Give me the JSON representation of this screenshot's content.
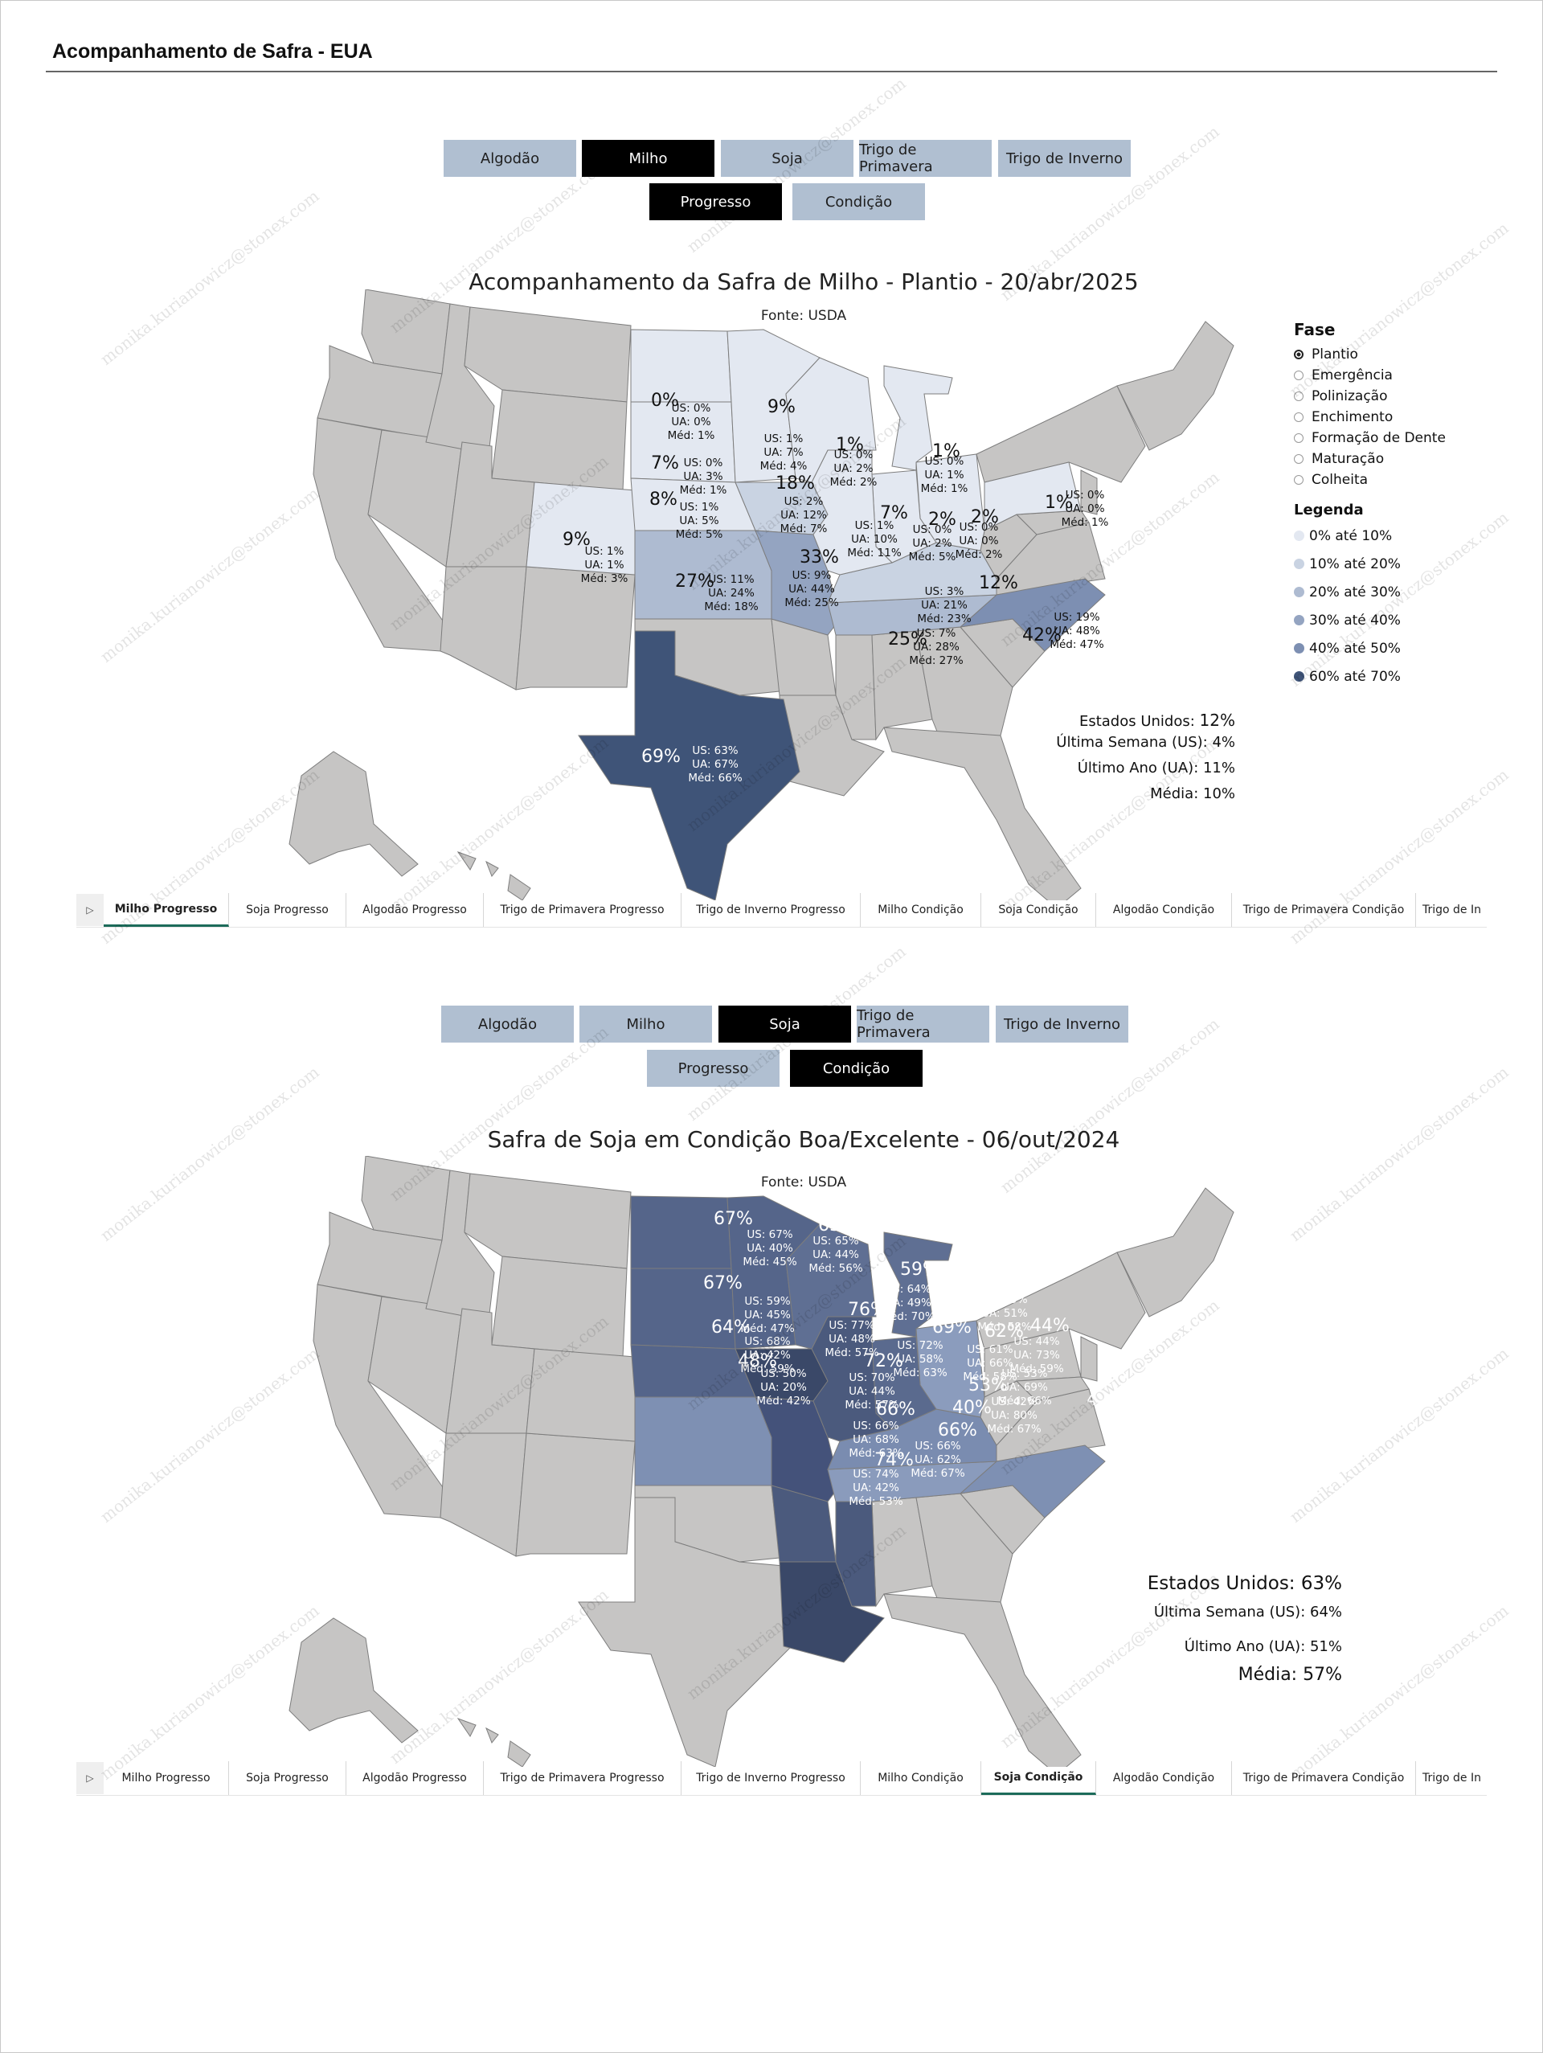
{
  "page_title": "Acompanhamento de Safra - EUA",
  "watermark": "monika.kurianowicz@stonex.com",
  "colors": {
    "button_off": "#b0bfd1",
    "button_on": "#000000",
    "state_inactive": "#c6c5c4",
    "tab_active_underline": "#1c6b5a",
    "legend_0_10": "#e3e8f1",
    "legend_10_20": "#c9d3e2",
    "legend_20_30": "#aebbd1",
    "legend_30_40": "#94a4c1",
    "legend_40_50": "#7d8fb2",
    "legend_60_70": "#3f5478"
  },
  "tabs": [
    "Milho Progresso",
    "Soja Progresso",
    "Algodão Progresso",
    "Trigo de Primavera Progresso",
    "Trigo de Inverno Progresso",
    "Milho Condição",
    "Soja Condição",
    "Algodão Condição",
    "Trigo de Primavera Condição",
    "Trigo de In"
  ],
  "tab_nav_icon": "play-right-icon",
  "panel1": {
    "crops": [
      "Algodão",
      "Milho",
      "Soja",
      "Trigo de Primavera",
      "Trigo de Inverno"
    ],
    "selected_crop": "Milho",
    "modes": [
      "Progresso",
      "Condição"
    ],
    "selected_mode": "Progresso",
    "title": "Acompanhamento da Safra de Milho - Plantio - 20/abr/2025",
    "source": "Fonte: USDA",
    "legend": {
      "phase_title": "Fase",
      "phases": [
        "Plantio",
        "Emergência",
        "Polinização",
        "Enchimento",
        "Formação de Dente",
        "Maturação",
        "Colheita"
      ],
      "selected_phase": "Plantio",
      "legend_title": "Legenda",
      "bins": [
        "0% até 10%",
        "10% até 20%",
        "20% até 30%",
        "30% até 40%",
        "40% até 50%",
        "60% até 70%"
      ]
    },
    "summary": {
      "us_label": "Estados Unidos:",
      "us_value": "12%",
      "last_week": "Última Semana (US): 4%",
      "last_year": "Último Ano (UA): 11%",
      "average": "Média: 10%"
    },
    "states": [
      {
        "code": "ND",
        "value": "0%",
        "us": "US: 0%",
        "ua": "UA: 0%",
        "med": "Méd: 1%"
      },
      {
        "code": "MN",
        "value": "9%",
        "us": "US: 1%",
        "ua": "UA: 7%",
        "med": "Méd: 4%"
      },
      {
        "code": "WI",
        "value": "1%",
        "us": "US: 0%",
        "ua": "UA: 2%",
        "med": "Méd: 2%"
      },
      {
        "code": "MI",
        "value": "1%",
        "us": "US: 0%",
        "ua": "UA: 1%",
        "med": "Méd: 1%"
      },
      {
        "code": "PA",
        "value": "1%",
        "us": "US: 0%",
        "ua": "UA: 0%",
        "med": "Méd: 1%"
      },
      {
        "code": "SD",
        "value": "7%",
        "us": "US: 0%",
        "ua": "UA: 3%",
        "med": "Méd: 1%"
      },
      {
        "code": "IA",
        "value": "18%",
        "us": "US: 2%",
        "ua": "UA: 12%",
        "med": "Méd: 7%"
      },
      {
        "code": "NE",
        "value": "8%",
        "us": "US: 1%",
        "ua": "UA: 5%",
        "med": "Méd: 5%"
      },
      {
        "code": "IL",
        "value": "7%",
        "us": "US: 1%",
        "ua": "UA: 10%",
        "med": "Méd: 11%"
      },
      {
        "code": "IN",
        "value": "2%",
        "us": "US: 0%",
        "ua": "UA: 2%",
        "med": "Méd: 5%"
      },
      {
        "code": "OH",
        "value": "2%",
        "us": "US: 0%",
        "ua": "UA: 0%",
        "med": "Méd: 2%"
      },
      {
        "code": "CO",
        "value": "9%",
        "us": "US: 1%",
        "ua": "UA: 1%",
        "med": "Méd: 3%"
      },
      {
        "code": "KS",
        "value": "27%",
        "us": "US: 11%",
        "ua": "UA: 24%",
        "med": "Méd: 18%"
      },
      {
        "code": "MO",
        "value": "33%",
        "us": "US: 9%",
        "ua": "UA: 44%",
        "med": "Méd: 25%"
      },
      {
        "code": "KY",
        "value": "12%",
        "us": "US: 3%",
        "ua": "UA: 21%",
        "med": "Méd: 23%"
      },
      {
        "code": "TN",
        "value": "25%",
        "us": "US: 7%",
        "ua": "UA: 28%",
        "med": "Méd: 27%"
      },
      {
        "code": "NC",
        "value": "42%",
        "us": "US: 19%",
        "ua": "UA: 48%",
        "med": "Méd: 47%"
      },
      {
        "code": "TX",
        "value": "69%",
        "us": "US: 63%",
        "ua": "UA: 67%",
        "med": "Méd: 66%"
      }
    ]
  },
  "panel2": {
    "crops": [
      "Algodão",
      "Milho",
      "Soja",
      "Trigo de Primavera",
      "Trigo de Inverno"
    ],
    "selected_crop": "Soja",
    "modes": [
      "Progresso",
      "Condição"
    ],
    "selected_mode": "Condição",
    "title": "Safra de Soja em Condição Boa/Excelente - 06/out/2024",
    "source": "Fonte: USDA",
    "summary": {
      "us_label": "Estados Unidos:",
      "us_value": "63%",
      "last_week": "Última Semana (US): 64%",
      "last_year": "Último Ano (UA): 51%",
      "average": "Média: 57%"
    },
    "states": [
      {
        "code": "ND",
        "value": "67%",
        "us": "US: 67%",
        "ua": "UA: 40%",
        "med": "Méd: 45%"
      },
      {
        "code": "MN",
        "value": "63%",
        "us": "US: 65%",
        "ua": "UA: 44%",
        "med": "Méd: 56%"
      },
      {
        "code": "WI",
        "value": "59%",
        "us": "US: 64%",
        "ua": "UA: 49%",
        "med": "Méd: 70%"
      },
      {
        "code": "MI",
        "value": "59%",
        "us": "US: 59%",
        "ua": "UA: 51%",
        "med": "Méd: 58%"
      },
      {
        "code": "SD",
        "value": "67%",
        "us": "US: 59%",
        "ua": "UA: 45%",
        "med": "Méd: 47%"
      },
      {
        "code": "IA",
        "value": "76%",
        "us": "US: 77%",
        "ua": "UA: 48%",
        "med": "Méd: 57%"
      },
      {
        "code": "NE",
        "value": "64%",
        "us": "US: 68%",
        "ua": "UA: 42%",
        "med": "Méd: 59%"
      },
      {
        "code": "IL",
        "value": "69%",
        "us": "US: 72%",
        "ua": "UA: 58%",
        "med": "Méd: 63%"
      },
      {
        "code": "IN",
        "value": "62%",
        "us": "US: 61%",
        "ua": "UA: 66%",
        "med": "Méd: 58%"
      },
      {
        "code": "OH",
        "value": "44%",
        "us": "US: 44%",
        "ua": "UA: 73%",
        "med": "Méd: 59%"
      },
      {
        "code": "KS",
        "value": "48%",
        "us": "US: 50%",
        "ua": "UA: 20%",
        "med": "Méd: 42%"
      },
      {
        "code": "MO",
        "value": "72%",
        "us": "US: 70%",
        "ua": "UA: 44%",
        "med": "Méd: 57%"
      },
      {
        "code": "KY",
        "value": "53%",
        "us": "US: 53%",
        "ua": "UA: 69%",
        "med": "Méd: 66%"
      },
      {
        "code": "TN",
        "value": "40%",
        "us": "US: 42%",
        "ua": "UA: 80%",
        "med": "Méd: 67%"
      },
      {
        "code": "NC",
        "value": "46%",
        "us": "US: 41%",
        "ua": "UA: 62%",
        "med": "Méd: 57%"
      },
      {
        "code": "AR",
        "value": "66%",
        "us": "US: 66%",
        "ua": "UA: 68%",
        "med": "Méd: 63%"
      },
      {
        "code": "MS",
        "value": "66%",
        "us": "US: 66%",
        "ua": "UA: 62%",
        "med": "Méd: 67%"
      },
      {
        "code": "LA",
        "value": "74%",
        "us": "US: 74%",
        "ua": "UA: 42%",
        "med": "Méd: 53%"
      }
    ]
  }
}
